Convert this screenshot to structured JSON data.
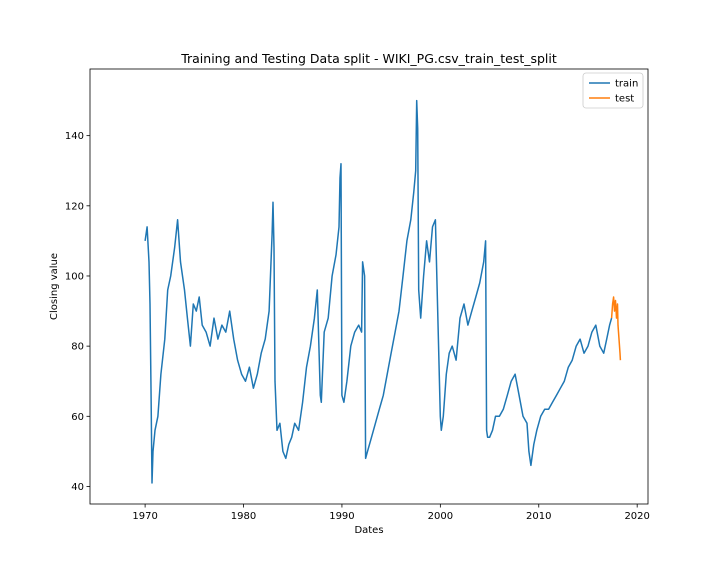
{
  "chart_data": {
    "type": "line",
    "title": "Training and Testing Data split - WIKI_PG.csv_train_test_split",
    "xlabel": "Dates",
    "ylabel": "Closing value",
    "xlim": [
      1964.4,
      2021.1
    ],
    "ylim": [
      35.0,
      159.0
    ],
    "x_ticks": [
      1970,
      1980,
      1990,
      2000,
      2010,
      2020
    ],
    "y_ticks": [
      40,
      60,
      80,
      100,
      120,
      140
    ],
    "legend_position": "top-right",
    "grid": false,
    "series": [
      {
        "name": "train",
        "color": "#1f77b4",
        "x": [
          1970.0,
          1970.2,
          1970.4,
          1970.5,
          1970.6,
          1970.7,
          1970.8,
          1971.0,
          1971.3,
          1971.6,
          1972.0,
          1972.3,
          1972.6,
          1973.0,
          1973.3,
          1973.6,
          1974.0,
          1974.3,
          1974.6,
          1974.9,
          1975.2,
          1975.5,
          1975.8,
          1976.2,
          1976.6,
          1977.0,
          1977.4,
          1977.8,
          1978.2,
          1978.6,
          1979.0,
          1979.4,
          1979.8,
          1980.2,
          1980.6,
          1981.0,
          1981.4,
          1981.8,
          1982.2,
          1982.6,
          1982.9,
          1983.0,
          1983.1,
          1983.2,
          1983.4,
          1983.7,
          1984.0,
          1984.3,
          1984.6,
          1984.9,
          1985.2,
          1985.6,
          1986.0,
          1986.4,
          1986.8,
          1987.2,
          1987.5,
          1987.8,
          1987.9,
          1988.2,
          1988.6,
          1989.0,
          1989.4,
          1989.7,
          1989.8,
          1989.9,
          1990.0,
          1990.2,
          1990.5,
          1990.9,
          1991.3,
          1991.7,
          1992.0,
          1992.1,
          1992.3,
          1992.4,
          1992.6,
          1993.0,
          1993.4,
          1993.8,
          1994.2,
          1994.6,
          1995.0,
          1995.4,
          1995.8,
          1996.2,
          1996.6,
          1997.0,
          1997.3,
          1997.5,
          1997.6,
          1997.7,
          1997.8,
          1998.0,
          1998.3,
          1998.6,
          1998.9,
          1999.2,
          1999.5,
          1999.8,
          2000.0,
          2000.1,
          2000.3,
          2000.6,
          2000.9,
          2001.2,
          2001.6,
          2002.0,
          2002.4,
          2002.8,
          2003.2,
          2003.6,
          2004.0,
          2004.4,
          2004.6,
          2004.7,
          2004.8,
          2005.0,
          2005.3,
          2005.6,
          2006.0,
          2006.4,
          2006.8,
          2007.2,
          2007.6,
          2008.0,
          2008.4,
          2008.8,
          2009.0,
          2009.2,
          2009.5,
          2009.8,
          2010.2,
          2010.6,
          2011.0,
          2011.4,
          2011.8,
          2012.2,
          2012.6,
          2013.0,
          2013.4,
          2013.8,
          2014.2,
          2014.6,
          2015.0,
          2015.4,
          2015.8,
          2016.2,
          2016.6,
          2016.9,
          2017.2,
          2017.4
        ],
        "y": [
          110,
          114,
          104,
          92,
          68,
          41,
          50,
          56,
          60,
          72,
          82,
          96,
          100,
          108,
          116,
          104,
          96,
          88,
          80,
          92,
          90,
          94,
          86,
          84,
          80,
          88,
          82,
          86,
          84,
          90,
          82,
          76,
          72,
          70,
          74,
          68,
          72,
          78,
          82,
          90,
          112,
          121,
          108,
          70,
          56,
          58,
          50,
          48,
          52,
          54,
          58,
          56,
          64,
          74,
          80,
          88,
          96,
          66,
          64,
          84,
          88,
          100,
          106,
          114,
          128,
          132,
          66,
          64,
          70,
          80,
          84,
          86,
          84,
          104,
          100,
          48,
          50,
          54,
          58,
          62,
          66,
          72,
          78,
          84,
          90,
          100,
          110,
          116,
          124,
          130,
          150,
          142,
          96,
          88,
          100,
          110,
          104,
          114,
          116,
          82,
          60,
          56,
          60,
          72,
          78,
          80,
          76,
          88,
          92,
          86,
          90,
          94,
          98,
          104,
          110,
          56,
          54,
          54,
          56,
          60,
          60,
          62,
          66,
          70,
          72,
          66,
          60,
          58,
          50,
          46,
          52,
          56,
          60,
          62,
          62,
          64,
          66,
          68,
          70,
          74,
          76,
          80,
          82,
          78,
          80,
          84,
          86,
          80,
          78,
          82,
          86,
          88
        ]
      },
      {
        "name": "test",
        "color": "#ff7f0e",
        "x": [
          2017.4,
          2017.5,
          2017.6,
          2017.7,
          2017.8,
          2017.9,
          2018.0,
          2018.05,
          2018.1,
          2018.15,
          2018.2,
          2018.25,
          2018.3
        ],
        "y": [
          88,
          92,
          94,
          90,
          93,
          88,
          92,
          86,
          84,
          82,
          80,
          78,
          76
        ]
      }
    ]
  }
}
